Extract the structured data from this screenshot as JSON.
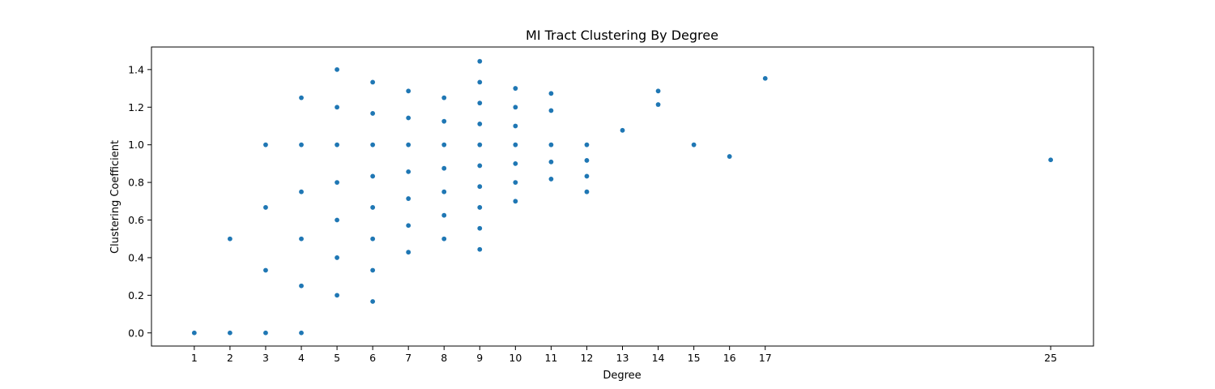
{
  "chart_data": {
    "type": "scatter",
    "title": "MI Tract Clustering By Degree",
    "xlabel": "Degree",
    "ylabel": "Clustering Coefficient",
    "xlim": [
      -0.2,
      26.2
    ],
    "ylim": [
      -0.07,
      1.52
    ],
    "xticks": [
      1,
      2,
      3,
      4,
      5,
      6,
      7,
      8,
      9,
      10,
      11,
      12,
      13,
      14,
      15,
      16,
      17,
      25
    ],
    "yticks": [
      "0.0",
      "0.2",
      "0.4",
      "0.6",
      "0.8",
      "1.0",
      "1.2",
      "1.4"
    ],
    "grid": false,
    "color": "#1f77b4",
    "points": [
      [
        1,
        0.0
      ],
      [
        2,
        0.0
      ],
      [
        2,
        0.5
      ],
      [
        3,
        0.0
      ],
      [
        3,
        0.333
      ],
      [
        3,
        0.667
      ],
      [
        3,
        1.0
      ],
      [
        4,
        0.0
      ],
      [
        4,
        0.25
      ],
      [
        4,
        0.5
      ],
      [
        4,
        0.75
      ],
      [
        4,
        1.0
      ],
      [
        4,
        1.25
      ],
      [
        5,
        0.2
      ],
      [
        5,
        0.4
      ],
      [
        5,
        0.6
      ],
      [
        5,
        0.8
      ],
      [
        5,
        1.0
      ],
      [
        5,
        1.2
      ],
      [
        5,
        1.4
      ],
      [
        6,
        0.167
      ],
      [
        6,
        0.333
      ],
      [
        6,
        0.5
      ],
      [
        6,
        0.667
      ],
      [
        6,
        0.833
      ],
      [
        6,
        1.0
      ],
      [
        6,
        1.167
      ],
      [
        6,
        1.333
      ],
      [
        7,
        0.429
      ],
      [
        7,
        0.571
      ],
      [
        7,
        0.714
      ],
      [
        7,
        0.857
      ],
      [
        7,
        1.0
      ],
      [
        7,
        1.143
      ],
      [
        7,
        1.286
      ],
      [
        8,
        0.5
      ],
      [
        8,
        0.625
      ],
      [
        8,
        0.75
      ],
      [
        8,
        0.875
      ],
      [
        8,
        1.0
      ],
      [
        8,
        1.125
      ],
      [
        8,
        1.25
      ],
      [
        9,
        0.444
      ],
      [
        9,
        0.556
      ],
      [
        9,
        0.667
      ],
      [
        9,
        0.778
      ],
      [
        9,
        0.889
      ],
      [
        9,
        1.0
      ],
      [
        9,
        1.111
      ],
      [
        9,
        1.222
      ],
      [
        9,
        1.333
      ],
      [
        9,
        1.444
      ],
      [
        10,
        0.7
      ],
      [
        10,
        0.8
      ],
      [
        10,
        0.9
      ],
      [
        10,
        1.0
      ],
      [
        10,
        1.1
      ],
      [
        10,
        1.2
      ],
      [
        10,
        1.3
      ],
      [
        11,
        0.818
      ],
      [
        11,
        0.909
      ],
      [
        11,
        1.0
      ],
      [
        11,
        1.182
      ],
      [
        11,
        1.273
      ],
      [
        12,
        0.75
      ],
      [
        12,
        0.833
      ],
      [
        12,
        0.917
      ],
      [
        12,
        1.0
      ],
      [
        13,
        1.077
      ],
      [
        14,
        1.214
      ],
      [
        14,
        1.286
      ],
      [
        15,
        1.0
      ],
      [
        16,
        0.938
      ],
      [
        17,
        1.353
      ],
      [
        25,
        0.92
      ]
    ]
  }
}
